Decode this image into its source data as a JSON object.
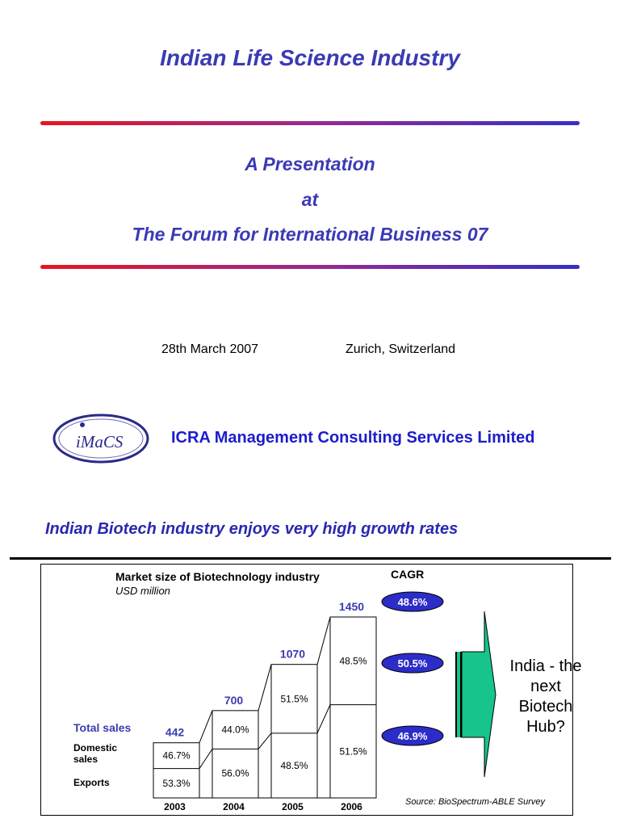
{
  "slide1": {
    "title": "Indian Life Science Industry",
    "subtitle_line1": "A Presentation",
    "subtitle_line2": "at",
    "subtitle_line3": "The Forum for International Business 07",
    "date": "28th March  2007",
    "location": "Zurich, Switzerland",
    "logo_text": "iMaCS",
    "organization": "ICRA Management Consulting Services Limited"
  },
  "slide2": {
    "headline": "Indian Biotech industry enjoys very high growth rates",
    "chart_title": "Market size of Biotechnology industry",
    "chart_unit": "USD million",
    "cagr_heading": "CAGR",
    "cagr_values": [
      "48.6%",
      "50.5%",
      "46.9%"
    ],
    "row_labels": {
      "total": "Total sales",
      "domestic": "Domestic sales",
      "exports": "Exports"
    },
    "callout": "India - the next Biotech Hub?",
    "source": "Source: BioSpectrum-ABLE Survey"
  },
  "colors": {
    "accent_blue": "#3a3ab4",
    "red": "#e8141e",
    "green": "#16c48c",
    "badge_fill": "#2c2cc8"
  },
  "chart_data": {
    "type": "bar",
    "categories": [
      "2003",
      "2004",
      "2005",
      "2006"
    ],
    "totals": [
      442,
      700,
      1070,
      1450
    ],
    "total_labels": [
      "442",
      "700",
      "1070",
      "1450"
    ],
    "series": [
      {
        "name": "Exports",
        "values_pct": [
          53.3,
          56.0,
          48.5,
          51.5
        ],
        "labels": [
          "53.3%",
          "56.0%",
          "48.5%",
          "51.5%"
        ]
      },
      {
        "name": "Domestic sales",
        "values_pct": [
          46.7,
          44.0,
          51.5,
          48.5
        ],
        "labels": [
          "46.7%",
          "44.0%",
          "51.5%",
          "48.5%"
        ]
      }
    ]
  }
}
